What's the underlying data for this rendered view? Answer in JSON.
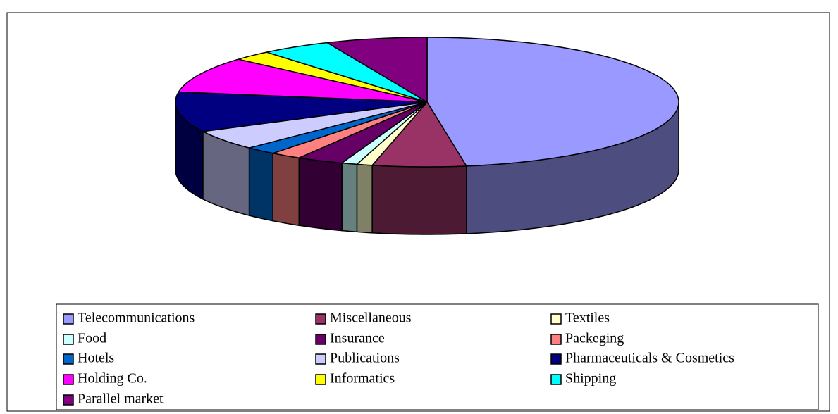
{
  "chart_data": {
    "type": "pie3d",
    "categories": [
      "Telecommunications",
      "Miscellaneous",
      "Textiles",
      "Food",
      "Insurance",
      "Packeging",
      "Hotels",
      "Publications",
      "Pharmaceuticals & Cosmetics",
      "Holding Co.",
      "Informatics",
      "Shipping",
      "Parallel market"
    ],
    "values": [
      47.5,
      6,
      1,
      1,
      3,
      2,
      2,
      5,
      10,
      9,
      2.5,
      4.5,
      6.5
    ],
    "colors": [
      "#9999ff",
      "#993366",
      "#ffffcc",
      "#ccffff",
      "#660066",
      "#ff8080",
      "#0066cc",
      "#ccccff",
      "#000080",
      "#ff00ff",
      "#ffff00",
      "#00ffff",
      "#800080"
    ],
    "legend": "bottom"
  }
}
